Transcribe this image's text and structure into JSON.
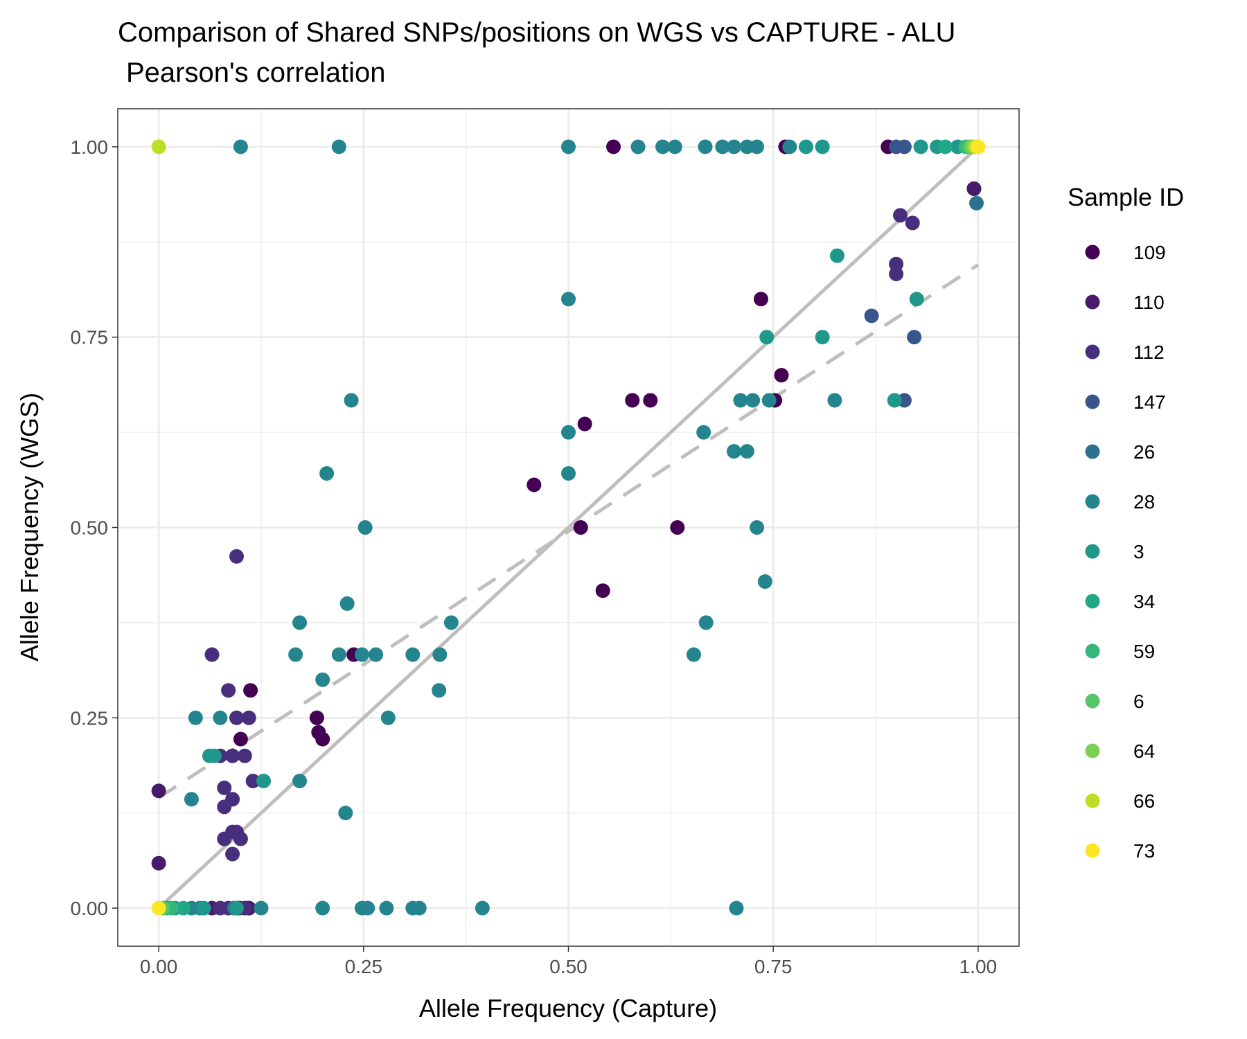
{
  "chart_data": {
    "type": "scatter",
    "title": "Comparison of Shared SNPs/positions on WGS vs CAPTURE - ALU",
    "subtitle": "Pearson's correlation",
    "xlabel": "Allele Frequency (Capture)",
    "ylabel": "Allele Frequency (WGS)",
    "xlim": [
      -0.05,
      1.05
    ],
    "ylim": [
      -0.05,
      1.05
    ],
    "x_ticks": [
      "0.00",
      "0.25",
      "0.50",
      "0.75",
      "1.00"
    ],
    "y_ticks": [
      "0.00",
      "0.25",
      "0.50",
      "0.75",
      "1.00"
    ],
    "grid": true,
    "legend": {
      "title": "Sample ID",
      "placement": "right"
    },
    "reference_lines": [
      {
        "kind": "identity",
        "style": "solid",
        "color": "#bebebe",
        "x": [
          0,
          1
        ],
        "y": [
          0,
          1
        ]
      },
      {
        "kind": "regression",
        "style": "dashed",
        "color": "#bebebe",
        "x": [
          0,
          1
        ],
        "y": [
          0.145,
          0.845
        ]
      }
    ],
    "series": [
      {
        "name": "109",
        "color": "#440154",
        "points": [
          [
            0.555,
            1.0
          ],
          [
            0.765,
            1.0
          ],
          [
            0.89,
            1.0
          ],
          [
            0.995,
            0.945
          ],
          [
            0.735,
            0.8
          ],
          [
            0.76,
            0.7
          ],
          [
            0.578,
            0.667
          ],
          [
            0.6,
            0.667
          ],
          [
            0.752,
            0.667
          ],
          [
            0.52,
            0.636
          ],
          [
            0.458,
            0.556
          ],
          [
            0.515,
            0.5
          ],
          [
            0.633,
            0.5
          ],
          [
            0.542,
            0.417
          ],
          [
            0.238,
            0.333
          ],
          [
            0.112,
            0.286
          ],
          [
            0.193,
            0.25
          ],
          [
            0.195,
            0.231
          ],
          [
            0.2,
            0.222
          ],
          [
            0.1,
            0.222
          ],
          [
            0.11,
            0.0
          ],
          [
            0.098,
            0.0
          ]
        ]
      },
      {
        "name": "110",
        "color": "#481A6C",
        "points": [
          [
            0.995,
            0.945
          ],
          [
            0.0,
            0.154
          ],
          [
            0.0,
            0.059
          ],
          [
            0.065,
            0.0
          ],
          [
            0.11,
            0.0
          ]
        ]
      },
      {
        "name": "112",
        "color": "#472F7D",
        "points": [
          [
            0.905,
            0.91
          ],
          [
            0.92,
            0.9
          ],
          [
            0.9,
            0.846
          ],
          [
            0.9,
            0.833
          ],
          [
            0.065,
            0.333
          ],
          [
            0.095,
            0.462
          ],
          [
            0.085,
            0.286
          ],
          [
            0.095,
            0.25
          ],
          [
            0.11,
            0.25
          ],
          [
            0.075,
            0.2
          ],
          [
            0.09,
            0.2
          ],
          [
            0.105,
            0.2
          ],
          [
            0.115,
            0.167
          ],
          [
            0.08,
            0.158
          ],
          [
            0.09,
            0.143
          ],
          [
            0.08,
            0.133
          ],
          [
            0.09,
            0.1
          ],
          [
            0.095,
            0.1
          ],
          [
            0.1,
            0.091
          ],
          [
            0.08,
            0.091
          ],
          [
            0.09,
            0.071
          ],
          [
            0.075,
            0.0
          ],
          [
            0.085,
            0.0
          ],
          [
            0.105,
            0.0
          ]
        ]
      },
      {
        "name": "147",
        "color": "#39568C",
        "points": [
          [
            0.9,
            1.0
          ],
          [
            0.91,
            1.0
          ],
          [
            0.87,
            0.778
          ],
          [
            0.922,
            0.75
          ],
          [
            0.91,
            0.667
          ]
        ]
      },
      {
        "name": "26",
        "color": "#2C728E",
        "points": [
          [
            0.998,
            0.926
          ],
          [
            0.092,
            0.0
          ]
        ]
      },
      {
        "name": "28",
        "color": "#25858E",
        "points": [
          [
            0.1,
            1.0
          ],
          [
            0.22,
            1.0
          ],
          [
            0.5,
            1.0
          ],
          [
            0.585,
            1.0
          ],
          [
            0.615,
            1.0
          ],
          [
            0.63,
            1.0
          ],
          [
            0.667,
            1.0
          ],
          [
            0.688,
            1.0
          ],
          [
            0.702,
            1.0
          ],
          [
            0.718,
            1.0
          ],
          [
            0.73,
            1.0
          ],
          [
            0.77,
            1.0
          ],
          [
            0.5,
            0.8
          ],
          [
            0.235,
            0.667
          ],
          [
            0.5,
            0.625
          ],
          [
            0.5,
            0.571
          ],
          [
            0.205,
            0.571
          ],
          [
            0.252,
            0.5
          ],
          [
            0.73,
            0.5
          ],
          [
            0.74,
            0.429
          ],
          [
            0.23,
            0.4
          ],
          [
            0.172,
            0.375
          ],
          [
            0.357,
            0.375
          ],
          [
            0.668,
            0.375
          ],
          [
            0.167,
            0.333
          ],
          [
            0.22,
            0.333
          ],
          [
            0.248,
            0.333
          ],
          [
            0.265,
            0.333
          ],
          [
            0.31,
            0.333
          ],
          [
            0.343,
            0.333
          ],
          [
            0.653,
            0.333
          ],
          [
            0.2,
            0.3
          ],
          [
            0.342,
            0.286
          ],
          [
            0.28,
            0.25
          ],
          [
            0.075,
            0.25
          ],
          [
            0.045,
            0.25
          ],
          [
            0.172,
            0.167
          ],
          [
            0.04,
            0.143
          ],
          [
            0.228,
            0.125
          ],
          [
            0.665,
            0.625
          ],
          [
            0.702,
            0.6
          ],
          [
            0.718,
            0.6
          ],
          [
            0.71,
            0.667
          ],
          [
            0.725,
            0.667
          ],
          [
            0.745,
            0.667
          ],
          [
            0.825,
            0.667
          ],
          [
            0.2,
            0.0
          ],
          [
            0.248,
            0.0
          ],
          [
            0.255,
            0.0
          ],
          [
            0.278,
            0.0
          ],
          [
            0.31,
            0.0
          ],
          [
            0.318,
            0.0
          ],
          [
            0.395,
            0.0
          ],
          [
            0.705,
            0.0
          ],
          [
            0.125,
            0.0
          ],
          [
            0.05,
            0.0
          ],
          [
            0.04,
            0.0
          ]
        ]
      },
      {
        "name": "3",
        "color": "#1F988B",
        "points": [
          [
            0.79,
            1.0
          ],
          [
            0.81,
            1.0
          ],
          [
            0.93,
            1.0
          ],
          [
            0.95,
            1.0
          ],
          [
            0.975,
            1.0
          ],
          [
            0.828,
            0.857
          ],
          [
            0.925,
            0.8
          ],
          [
            0.81,
            0.75
          ],
          [
            0.742,
            0.75
          ],
          [
            0.898,
            0.667
          ],
          [
            0.062,
            0.2
          ],
          [
            0.068,
            0.2
          ],
          [
            0.128,
            0.167
          ],
          [
            0.01,
            0.0
          ],
          [
            0.02,
            0.0
          ],
          [
            0.055,
            0.0
          ],
          [
            0.095,
            0.0
          ]
        ]
      },
      {
        "name": "34",
        "color": "#22A884",
        "points": [
          [
            0.96,
            1.0
          ],
          [
            0.03,
            0.0
          ]
        ]
      },
      {
        "name": "59",
        "color": "#35B779",
        "points": [
          [
            0.985,
            1.0
          ],
          [
            0.015,
            0.0
          ]
        ]
      },
      {
        "name": "6",
        "color": "#54C568",
        "points": [
          [
            0.99,
            1.0
          ],
          [
            0.005,
            0.0
          ]
        ]
      },
      {
        "name": "64",
        "color": "#7AD151",
        "points": [
          [
            0.993,
            1.0
          ]
        ]
      },
      {
        "name": "66",
        "color": "#BBDF27",
        "points": [
          [
            0.0,
            1.0
          ],
          [
            0.997,
            1.0
          ]
        ]
      },
      {
        "name": "73",
        "color": "#FDE725",
        "points": [
          [
            1.0,
            1.0
          ],
          [
            0.0,
            0.0
          ]
        ]
      }
    ]
  }
}
